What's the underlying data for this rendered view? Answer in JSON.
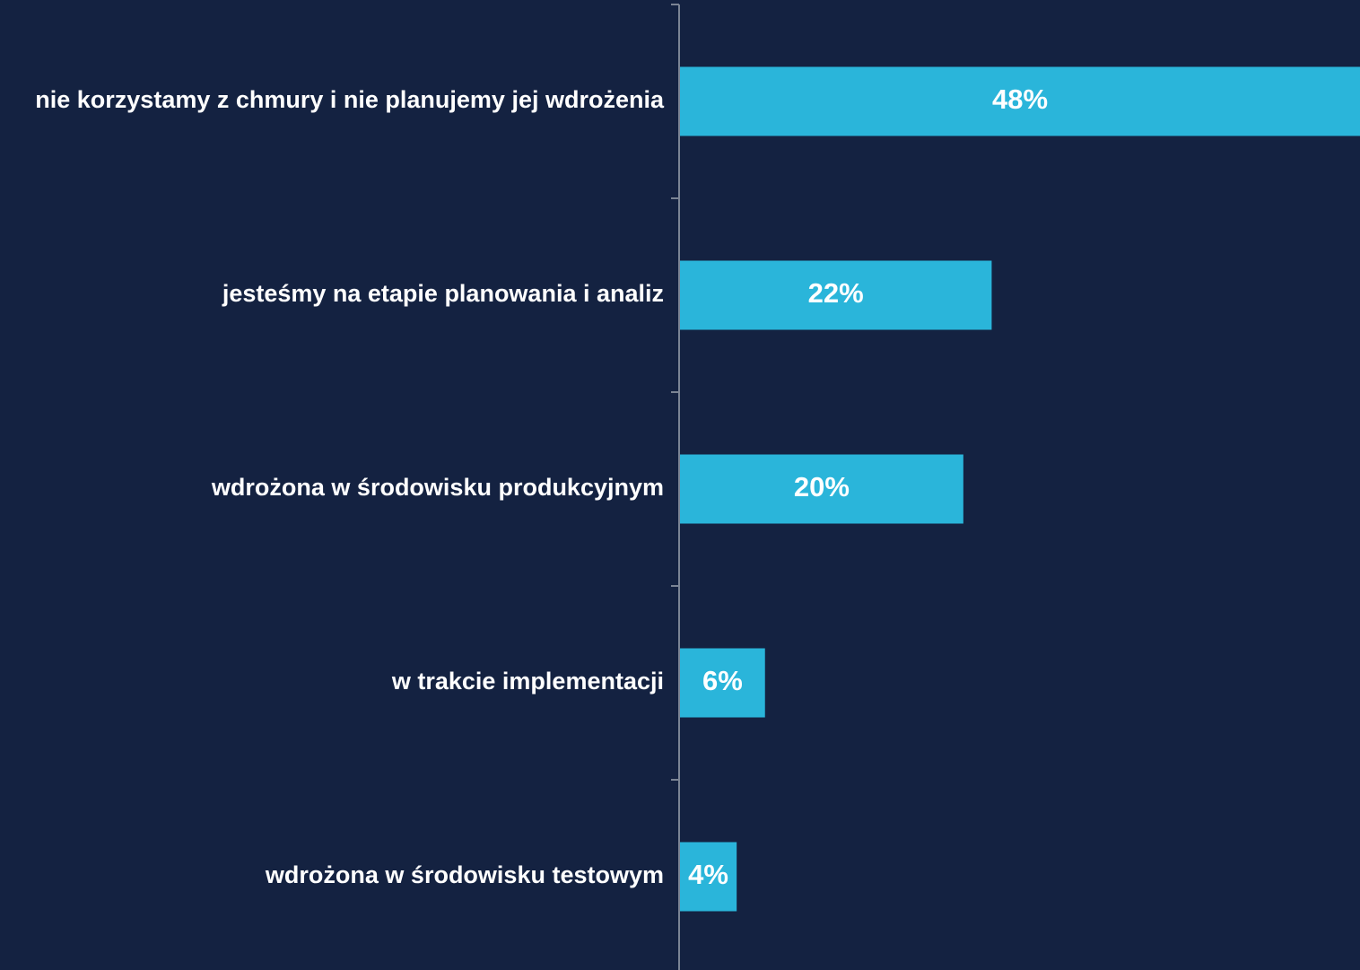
{
  "chart_data": {
    "type": "bar",
    "orientation": "horizontal",
    "categories": [
      "nie korzystamy z chmury i nie planujemy jej wdrożenia",
      "jesteśmy na etapie planowania i analiz",
      "wdrożona w środowisku produkcyjnym",
      "w trakcie implementacji",
      "wdrożona w środowisku testowym"
    ],
    "values": [
      48,
      22,
      20,
      6,
      4
    ],
    "value_labels": [
      "48%",
      "22%",
      "20%",
      "6%",
      "4%"
    ],
    "unit": "%",
    "xlim": [
      0,
      48
    ],
    "title": "",
    "xlabel": "",
    "ylabel": "",
    "grid": false,
    "legend": "none"
  },
  "colors": {
    "background": "#142241",
    "bar": "#2ab5da",
    "text": "#ffffff",
    "axis": "#7b8494"
  }
}
